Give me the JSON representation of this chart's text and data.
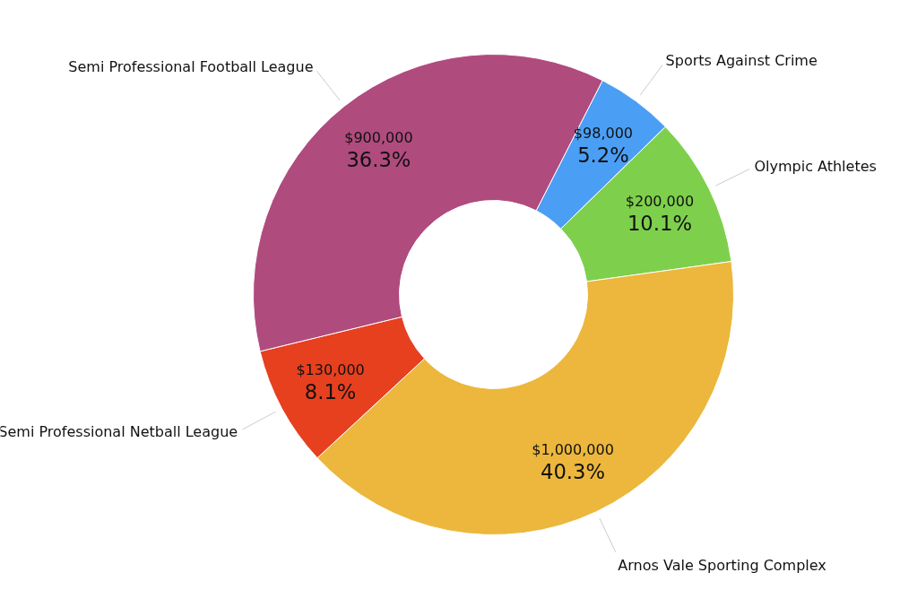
{
  "chart_data": {
    "type": "donut",
    "categories": [
      "Sports Against Crime",
      "Olympic Athletes",
      "Arnos Vale Sporting Complex",
      "Semi Professional Netball League",
      "Semi Professional Football League"
    ],
    "values": [
      5.2,
      10.1,
      40.3,
      8.1,
      36.3
    ],
    "colors": [
      "#4a9ff5",
      "#7ed04c",
      "#ecb73c",
      "#e6401f",
      "#b04b7e"
    ],
    "value_labels": [
      "5.2%",
      "10.1%",
      "40.3%",
      "8.1%",
      "36.3%"
    ],
    "annotations": [
      {
        "text": "$98,000",
        "x": "Sports Against Crime"
      },
      {
        "text": "$200,000",
        "x": "Olympic Athletes"
      },
      {
        "text": "$1,000,000",
        "x": "Arnos Vale Sporting Complex"
      },
      {
        "text": "$130,000",
        "x": "Semi Professional Netball League"
      },
      {
        "text": "$900,000",
        "x": "Semi Professional Football League"
      }
    ]
  }
}
